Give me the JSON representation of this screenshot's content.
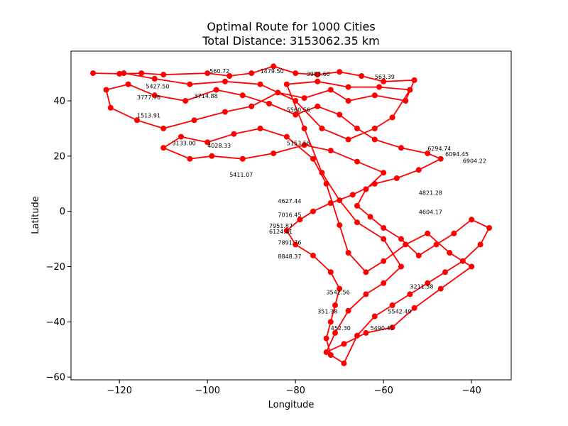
{
  "chart_data": {
    "type": "line",
    "title": "Optimal Route for 1000 Cities",
    "subtitle": "Total Distance: 3153062.35 km",
    "xlabel": "Longitude",
    "ylabel": "Latitude",
    "xlim": [
      -131,
      -31
    ],
    "ylim": [
      -61,
      58
    ],
    "xticks": [
      -120,
      -100,
      -80,
      -60,
      -40
    ],
    "yticks": [
      -60,
      -40,
      -20,
      0,
      20,
      40
    ],
    "grid": false,
    "legend": "none",
    "series": [
      {
        "color": "#ff0000",
        "marker": "circle",
        "points": [
          [
            -126,
            50
          ],
          [
            -120,
            49.8
          ],
          [
            -115,
            50
          ],
          [
            -110,
            49.5
          ],
          [
            -100,
            50
          ],
          [
            -95,
            49
          ],
          [
            -90,
            50
          ],
          [
            -85,
            52.5
          ],
          [
            -80,
            50
          ],
          [
            -75,
            49.5
          ],
          [
            -70,
            50.5
          ],
          [
            -65,
            49
          ],
          [
            -60,
            47
          ],
          [
            -53,
            47.5
          ],
          [
            -55,
            40
          ],
          [
            -62,
            42
          ],
          [
            -68,
            40
          ],
          [
            -72,
            44
          ],
          [
            -78,
            41
          ],
          [
            -84,
            43
          ],
          [
            -90,
            38
          ],
          [
            -96,
            36
          ],
          [
            -103,
            33
          ],
          [
            -110,
            30
          ],
          [
            -116,
            33
          ],
          [
            -122,
            37.5
          ],
          [
            -123,
            44
          ],
          [
            -118,
            46
          ],
          [
            -112,
            42
          ],
          [
            -105,
            40
          ],
          [
            -98,
            44
          ],
          [
            -92,
            42
          ],
          [
            -86,
            39
          ],
          [
            -80,
            35
          ],
          [
            -75,
            38
          ],
          [
            -70,
            35
          ],
          [
            -66,
            30
          ],
          [
            -62,
            26
          ],
          [
            -56,
            23
          ],
          [
            -50,
            21
          ],
          [
            -47,
            19
          ],
          [
            -52,
            15
          ],
          [
            -57,
            12
          ],
          [
            -62,
            10
          ],
          [
            -67,
            6
          ],
          [
            -72,
            3
          ],
          [
            -76,
            0
          ],
          [
            -79,
            -3
          ],
          [
            -82,
            -7
          ],
          [
            -80,
            -12
          ],
          [
            -76,
            -16
          ],
          [
            -72,
            -22
          ],
          [
            -70,
            -28
          ],
          [
            -71,
            -34
          ],
          [
            -72,
            -40
          ],
          [
            -73,
            -46
          ],
          [
            -72,
            -52
          ],
          [
            -69,
            -55
          ],
          [
            -66,
            -45
          ],
          [
            -62,
            -38
          ],
          [
            -58,
            -34
          ],
          [
            -54,
            -30
          ],
          [
            -50,
            -26
          ],
          [
            -46,
            -22
          ],
          [
            -42,
            -18
          ],
          [
            -38,
            -12
          ],
          [
            -36,
            -6
          ],
          [
            -40,
            -3
          ],
          [
            -44,
            -8
          ],
          [
            -48,
            -12
          ],
          [
            -52,
            -16
          ],
          [
            -56,
            -10
          ],
          [
            -60,
            -6
          ],
          [
            -63,
            -2
          ],
          [
            -66,
            2
          ],
          [
            -64,
            8
          ],
          [
            -60,
            14
          ],
          [
            -66,
            18
          ],
          [
            -72,
            22
          ],
          [
            -78,
            24
          ],
          [
            -85,
            21
          ],
          [
            -92,
            19
          ],
          [
            -99,
            20
          ],
          [
            -104,
            19
          ],
          [
            -110,
            23
          ],
          [
            -106,
            27
          ],
          [
            -100,
            25
          ],
          [
            -94,
            28
          ],
          [
            -88,
            30
          ],
          [
            -82,
            27
          ],
          [
            -76,
            19
          ],
          [
            -73,
            10
          ],
          [
            -70,
            -5
          ],
          [
            -68,
            -15
          ],
          [
            -64,
            -22
          ],
          [
            -60,
            -18
          ],
          [
            -55,
            -12
          ],
          [
            -50,
            -8
          ],
          [
            -45,
            -15
          ],
          [
            -40,
            -20
          ],
          [
            -47,
            -28
          ],
          [
            -53,
            -35
          ],
          [
            -58,
            -42
          ],
          [
            -64,
            -44
          ],
          [
            -69,
            -48
          ],
          [
            -73,
            -51
          ],
          [
            -71,
            -44
          ],
          [
            -68,
            -36
          ],
          [
            -64,
            -30
          ],
          [
            -60,
            -26
          ],
          [
            -56,
            -20
          ],
          [
            -60,
            -10
          ],
          [
            -66,
            -4
          ],
          [
            -70,
            4
          ],
          [
            -74,
            14
          ],
          [
            -78,
            30
          ],
          [
            -82,
            46
          ],
          [
            -75,
            47
          ],
          [
            -68,
            45
          ],
          [
            -61,
            45
          ],
          [
            -54,
            44
          ],
          [
            -58,
            34
          ],
          [
            -62,
            30
          ],
          [
            -68,
            26
          ],
          [
            -74,
            30
          ],
          [
            -80,
            40
          ],
          [
            -88,
            46
          ],
          [
            -96,
            47
          ],
          [
            -104,
            46
          ],
          [
            -112,
            48
          ],
          [
            -119,
            50
          ]
        ]
      }
    ],
    "annotations": [
      {
        "text": "560.72",
        "x": -99.5,
        "y": 50
      },
      {
        "text": "1479.50",
        "x": -88,
        "y": 50
      },
      {
        "text": "3983.60",
        "x": -77.5,
        "y": 49
      },
      {
        "text": "563.39",
        "x": -62,
        "y": 48
      },
      {
        "text": "5427.50",
        "x": -114,
        "y": 44.5
      },
      {
        "text": "3777.76",
        "x": -116,
        "y": 40.5
      },
      {
        "text": "3714.88",
        "x": -103,
        "y": 41
      },
      {
        "text": "1513.91",
        "x": -116,
        "y": 34
      },
      {
        "text": "5560.56",
        "x": -82,
        "y": 36
      },
      {
        "text": "6294.74",
        "x": -50,
        "y": 22
      },
      {
        "text": "6094.45",
        "x": -46,
        "y": 20
      },
      {
        "text": "6904.22",
        "x": -42,
        "y": 17.5
      },
      {
        "text": "5153.56",
        "x": -82,
        "y": 24
      },
      {
        "text": "4821.28",
        "x": -52,
        "y": 6
      },
      {
        "text": "4604.17",
        "x": -52,
        "y": -1
      },
      {
        "text": "7016.45",
        "x": -84,
        "y": -2
      },
      {
        "text": "7951.87",
        "x": -86,
        "y": -6
      },
      {
        "text": "6124.41",
        "x": -86,
        "y": -8
      },
      {
        "text": "7891.76",
        "x": -84,
        "y": -12
      },
      {
        "text": "8848.37",
        "x": -84,
        "y": -17
      },
      {
        "text": "4627.44",
        "x": -84,
        "y": 3
      },
      {
        "text": "5411.07",
        "x": -95,
        "y": 12.5
      },
      {
        "text": "3133.00",
        "x": -108,
        "y": 24
      },
      {
        "text": "4028.33",
        "x": -100,
        "y": 23
      },
      {
        "text": "3542.56",
        "x": -73,
        "y": -30
      },
      {
        "text": "351.38",
        "x": -75,
        "y": -37
      },
      {
        "text": "5490.45",
        "x": -63,
        "y": -43
      },
      {
        "text": "452.30",
        "x": -72,
        "y": -43
      },
      {
        "text": "5542.49",
        "x": -59,
        "y": -37
      },
      {
        "text": "3211.58",
        "x": -54,
        "y": -28
      }
    ]
  }
}
